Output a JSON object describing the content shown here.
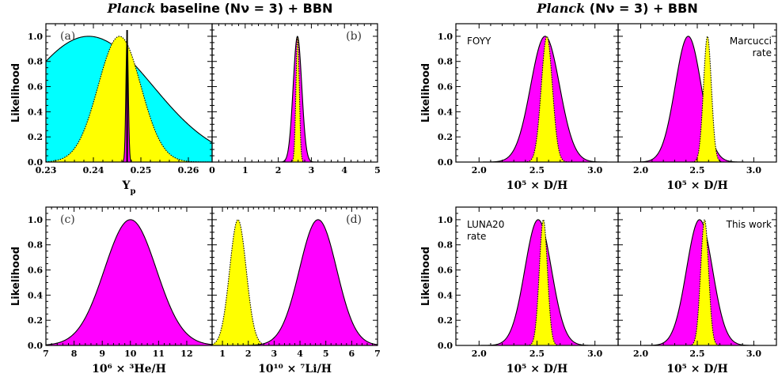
{
  "titles": {
    "left_italic": "Planck",
    "left_rest": " baseline (Nν = 3) + BBN",
    "right_italic": "Planck",
    "right_rest": " (Nν = 3) + BBN"
  },
  "colors": {
    "magenta": "#ff00ff",
    "yellow": "#ffff00",
    "cyan": "#00ffff"
  },
  "chart_data": [
    {
      "id": "a",
      "type": "area",
      "panel_label": "(a)",
      "xlabel": "Yp",
      "ylabel": "Likelihood",
      "xlim": [
        0.23,
        0.265
      ],
      "ylim": [
        0,
        1.1
      ],
      "xticks": [
        0.23,
        0.24,
        0.25,
        0.26
      ],
      "xtick_labels": [
        "0.23",
        "0.24",
        "0.25",
        "0.26"
      ],
      "yticks": [
        0.0,
        0.2,
        0.4,
        0.6,
        0.8,
        1.0
      ],
      "ytick_labels": [
        "0.0",
        "0.2",
        "0.4",
        "0.6",
        "0.8",
        "1.0"
      ],
      "series": [
        {
          "color": "cyan",
          "mean": 0.239,
          "sigma": 0.0135,
          "outline": "solid"
        },
        {
          "color": "yellow",
          "mean": 0.2455,
          "sigma": 0.0045,
          "outline": "dotted"
        },
        {
          "color": "magenta",
          "mean": 0.2471,
          "sigma": 0.00025,
          "outline": "solid"
        }
      ]
    },
    {
      "id": "b",
      "type": "area",
      "panel_label": "(b)",
      "xlabel": "",
      "ylabel": "",
      "xlim": [
        0,
        5
      ],
      "ylim": [
        0,
        1.1
      ],
      "xticks": [
        0,
        1,
        2,
        3,
        4,
        5
      ],
      "xtick_labels": [
        "0",
        "1",
        "2",
        "3",
        "4",
        "5"
      ],
      "yticks": [
        0.0,
        0.2,
        0.4,
        0.6,
        0.8,
        1.0
      ],
      "ytick_labels": [],
      "series": [
        {
          "color": "magenta",
          "mean": 2.58,
          "sigma": 0.13,
          "outline": "solid"
        },
        {
          "color": "yellow",
          "mean": 2.585,
          "sigma": 0.05,
          "outline": "dotted"
        }
      ]
    },
    {
      "id": "c",
      "type": "area",
      "panel_label": "(c)",
      "xlabel": "10⁶ × ³He/H",
      "ylabel": "Likelihood",
      "xlim": [
        7,
        12.9
      ],
      "ylim": [
        0,
        1.1
      ],
      "xticks": [
        7,
        8,
        9,
        10,
        11,
        12
      ],
      "xtick_labels": [
        "7",
        "8",
        "9",
        "10",
        "11",
        "12"
      ],
      "yticks": [
        0.0,
        0.2,
        0.4,
        0.6,
        0.8,
        1.0
      ],
      "ytick_labels": [
        "0.0",
        "0.2",
        "0.4",
        "0.6",
        "0.8",
        "1.0"
      ],
      "series": [
        {
          "color": "magenta",
          "mean": 10.0,
          "sigma": 0.92,
          "outline": "solid"
        }
      ]
    },
    {
      "id": "d",
      "type": "area",
      "panel_label": "(d)",
      "xlabel": "10¹⁰ × ⁷Li/H",
      "ylabel": "",
      "xlim": [
        0.6,
        7
      ],
      "ylim": [
        0,
        1.1
      ],
      "xticks": [
        1,
        2,
        3,
        4,
        5,
        6,
        7
      ],
      "xtick_labels": [
        "1",
        "2",
        "3",
        "4",
        "5",
        "6",
        "7"
      ],
      "yticks": [
        0.0,
        0.2,
        0.4,
        0.6,
        0.8,
        1.0
      ],
      "ytick_labels": [],
      "series": [
        {
          "color": "yellow",
          "mean": 1.6,
          "sigma": 0.32,
          "outline": "dotted"
        },
        {
          "color": "magenta",
          "mean": 4.7,
          "sigma": 0.72,
          "outline": "solid"
        }
      ]
    },
    {
      "id": "e",
      "type": "area",
      "annotation": "FOYY",
      "xlabel": "10⁵ × D/H",
      "ylabel": "Likelihood",
      "xlim": [
        1.8,
        3.2
      ],
      "ylim": [
        0,
        1.1
      ],
      "xticks": [
        2.0,
        2.5,
        3.0
      ],
      "xtick_labels": [
        "2.0",
        "2.5",
        "3.0"
      ],
      "yticks": [
        0.0,
        0.2,
        0.4,
        0.6,
        0.8,
        1.0
      ],
      "ytick_labels": [
        "0.0",
        "0.2",
        "0.4",
        "0.6",
        "0.8",
        "1.0"
      ],
      "series": [
        {
          "color": "magenta",
          "mean": 2.57,
          "sigma": 0.125,
          "outline": "solid"
        },
        {
          "color": "yellow",
          "mean": 2.585,
          "sigma": 0.048,
          "outline": "dotted"
        }
      ]
    },
    {
      "id": "f",
      "type": "area",
      "annotation": "Marcucci rate",
      "annotation_lines": [
        "Marcucci",
        "rate"
      ],
      "xlabel": "10⁵ × D/H",
      "ylabel": "",
      "xlim": [
        1.8,
        3.2
      ],
      "ylim": [
        0,
        1.1
      ],
      "xticks": [
        2.0,
        2.5,
        3.0
      ],
      "xtick_labels": [
        "2.0",
        "2.5",
        "3.0"
      ],
      "yticks": [
        0.0,
        0.2,
        0.4,
        0.6,
        0.8,
        1.0
      ],
      "ytick_labels": [],
      "series": [
        {
          "color": "magenta",
          "mean": 2.42,
          "sigma": 0.115,
          "outline": "solid"
        },
        {
          "color": "yellow",
          "mean": 2.59,
          "sigma": 0.035,
          "outline": "dotted"
        }
      ]
    },
    {
      "id": "g",
      "type": "area",
      "annotation": "LUNA20 rate",
      "annotation_lines": [
        "LUNA20",
        "rate"
      ],
      "xlabel": "10⁵ × D/H",
      "ylabel": "Likelihood",
      "xlim": [
        1.8,
        3.2
      ],
      "ylim": [
        0,
        1.1
      ],
      "xticks": [
        2.0,
        2.5,
        3.0
      ],
      "xtick_labels": [
        "2.0",
        "2.5",
        "3.0"
      ],
      "yticks": [
        0.0,
        0.2,
        0.4,
        0.6,
        0.8,
        1.0
      ],
      "ytick_labels": [
        "0.0",
        "0.2",
        "0.4",
        "0.6",
        "0.8",
        "1.0"
      ],
      "series": [
        {
          "color": "magenta",
          "mean": 2.51,
          "sigma": 0.115,
          "outline": "solid"
        },
        {
          "color": "yellow",
          "mean": 2.555,
          "sigma": 0.035,
          "outline": "dotted"
        }
      ]
    },
    {
      "id": "h",
      "type": "area",
      "annotation": "This work",
      "xlabel": "10⁵ × D/H",
      "ylabel": "",
      "xlim": [
        1.8,
        3.2
      ],
      "ylim": [
        0,
        1.1
      ],
      "xticks": [
        2.0,
        2.5,
        3.0
      ],
      "xtick_labels": [
        "2.0",
        "2.5",
        "3.0"
      ],
      "yticks": [
        0.0,
        0.2,
        0.4,
        0.6,
        0.8,
        1.0
      ],
      "ytick_labels": [],
      "series": [
        {
          "color": "magenta",
          "mean": 2.52,
          "sigma": 0.115,
          "outline": "solid"
        },
        {
          "color": "yellow",
          "mean": 2.565,
          "sigma": 0.035,
          "outline": "dotted"
        }
      ]
    }
  ]
}
